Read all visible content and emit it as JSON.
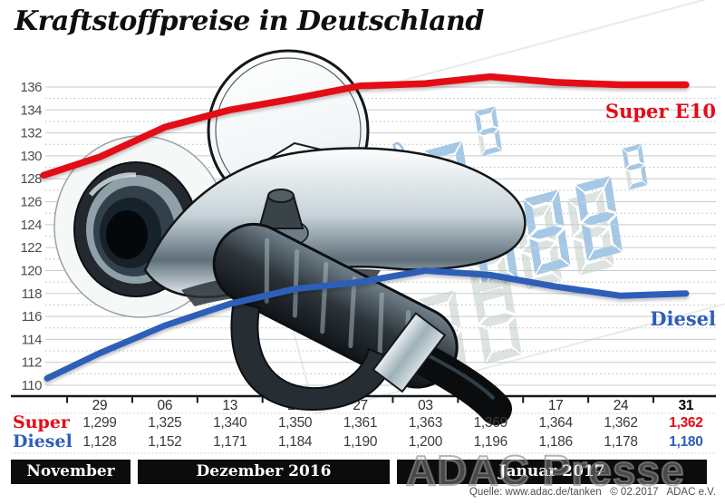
{
  "title": "Kraftstoffpreise in Deutschland",
  "chart_data": {
    "type": "line",
    "x": [
      "29",
      "06",
      "13",
      "20",
      "27",
      "03",
      "10",
      "17",
      "24",
      "31"
    ],
    "series": [
      {
        "name": "Super E10",
        "color": "#e30b17",
        "values": [
          129.9,
          132.5,
          134.0,
          135.0,
          136.1,
          136.3,
          136.9,
          136.4,
          136.2,
          136.2
        ]
      },
      {
        "name": "Diesel",
        "color": "#2e5eb8",
        "values": [
          112.8,
          115.2,
          117.1,
          118.4,
          119.0,
          120.0,
          119.6,
          118.6,
          117.8,
          118.0
        ]
      }
    ],
    "lead_in": {
      "super": 128.3,
      "diesel": 110.6
    },
    "yticks": [
      136,
      134,
      132,
      130,
      128,
      126,
      124,
      122,
      120,
      118,
      116,
      114,
      112,
      110
    ],
    "ylim": [
      109,
      137.5
    ],
    "grid": "solid lines at even values, dotted lines at odd values",
    "legend_position": "right, inline labels at line ends"
  },
  "series_labels": {
    "super": "Super E10",
    "diesel": "Diesel"
  },
  "table": {
    "columns": [
      "29",
      "06",
      "13",
      "20",
      "27",
      "03",
      "10",
      "17",
      "24",
      "31"
    ],
    "rows": [
      {
        "label": "Super",
        "color": "#e30b17",
        "values": [
          "1,299",
          "1,325",
          "1,340",
          "1,350",
          "1,361",
          "1,363",
          "1,369",
          "1,364",
          "1,362",
          "1,362"
        ]
      },
      {
        "label": "Diesel",
        "color": "#2e5eb8",
        "values": [
          "1,128",
          "1,152",
          "1,171",
          "1,184",
          "1,190",
          "1,200",
          "1,196",
          "1,186",
          "1,178",
          "1,180"
        ]
      }
    ]
  },
  "months": [
    {
      "label": "November"
    },
    {
      "label": "Dezember 2016"
    },
    {
      "label": "Januar 2017"
    }
  ],
  "display": {
    "rows": [
      {
        "label": "SUPER E10",
        "digits": "088",
        "sup": "9"
      },
      {
        "label": "DIESEL",
        "digits": "088",
        "sup": "9"
      }
    ],
    "lit_color": "#a4c8e6",
    "ghost_color": "#dde3df"
  },
  "watermark": "ADAC Presse",
  "source": "Quelle: www.adac.de/tanken   © 02.2017   ADAC e.V.",
  "colors": {
    "super": "#e30b17",
    "diesel": "#2e5eb8",
    "grid_major": "#c8ccce",
    "grid_minor": "#b8bcbe",
    "axis": "#17191b",
    "month_bar": "#0c0c0c"
  }
}
